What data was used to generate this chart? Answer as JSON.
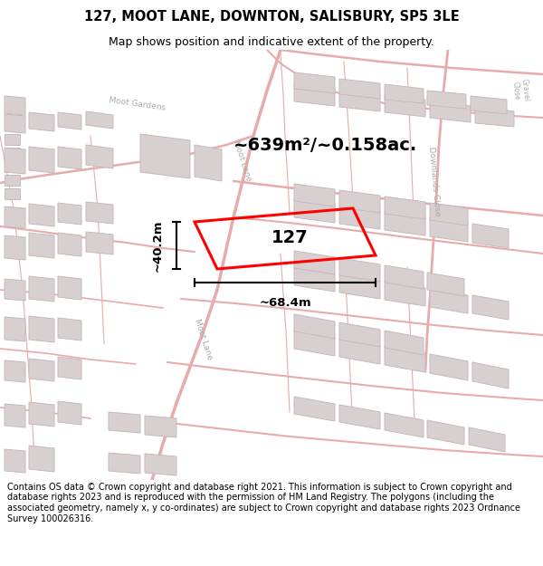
{
  "title_line1": "127, MOOT LANE, DOWNTON, SALISBURY, SP5 3LE",
  "title_line2": "Map shows position and indicative extent of the property.",
  "area_text": "~639m²/~0.158ac.",
  "label_127": "127",
  "dim_width": "~68.4m",
  "dim_height": "~40.2m",
  "copyright_text": "Contains OS data © Crown copyright and database right 2021. This information is subject to Crown copyright and database rights 2023 and is reproduced with the permission of HM Land Registry. The polygons (including the associated geometry, namely x, y co-ordinates) are subject to Crown copyright and database rights 2023 Ordnance Survey 100026316.",
  "bg_color": "#ffffff",
  "map_bg": "#ffffff",
  "road_color": "#e8aaaa",
  "road_lw": 1.0,
  "building_fill": "#d8d0d0",
  "building_edge": "#c8b8b8",
  "property_color": "#ff0000",
  "property_lw": 2.2,
  "title_color": "#000000",
  "dim_color": "#000000",
  "area_color": "#000000",
  "label_color": "#000000",
  "street_label_color": "#aaaaaa",
  "title_fontsize": 10.5,
  "subtitle_fontsize": 9.0,
  "area_fontsize": 14,
  "label_fontsize": 14,
  "dim_fontsize": 9.5,
  "street_fontsize": 6.5,
  "copyright_fontsize": 7.0
}
